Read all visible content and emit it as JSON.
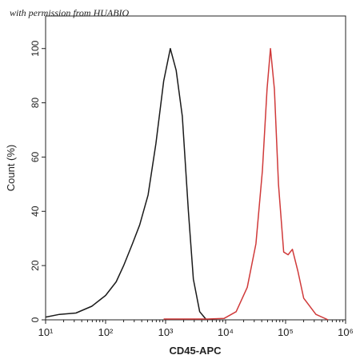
{
  "chart_data": {
    "type": "line",
    "annotation": "with permission from HUABIO",
    "xlabel": "CD45-APC",
    "ylabel": "Count (%)",
    "xscale": "log",
    "xlim": [
      10,
      1000000
    ],
    "xticks": [
      {
        "value": 10,
        "label": "10¹"
      },
      {
        "value": 100,
        "label": "10²"
      },
      {
        "value": 1000,
        "label": "10³"
      },
      {
        "value": 10000,
        "label": "10⁴"
      },
      {
        "value": 100000,
        "label": "10⁵"
      },
      {
        "value": 1000000,
        "label": "10⁶"
      }
    ],
    "ylim": [
      0,
      112
    ],
    "yticks": [
      0,
      20,
      40,
      60,
      80,
      100
    ],
    "series": [
      {
        "color": "#1a1a1a",
        "x": [
          10,
          17,
          32,
          59,
          100,
          150,
          200,
          280,
          370,
          510,
          690,
          930,
          1200,
          1500,
          1900,
          2400,
          2900,
          3700,
          4800
        ],
        "values": [
          1,
          2,
          2.5,
          5,
          9,
          14,
          20,
          28,
          35,
          46,
          65,
          88,
          100,
          92,
          75,
          40,
          15,
          3,
          0
        ]
      },
      {
        "color": "#d03a3a",
        "x": [
          930,
          5000,
          9400,
          15000,
          23000,
          32000,
          41000,
          49000,
          56000,
          65000,
          76000,
          93000,
          110000,
          130000,
          160000,
          200000,
          320000,
          510000
        ],
        "values": [
          0.3,
          0.3,
          0.5,
          3,
          12,
          28,
          55,
          85,
          100,
          85,
          50,
          25,
          24,
          26,
          18,
          8,
          2,
          0
        ]
      }
    ]
  }
}
